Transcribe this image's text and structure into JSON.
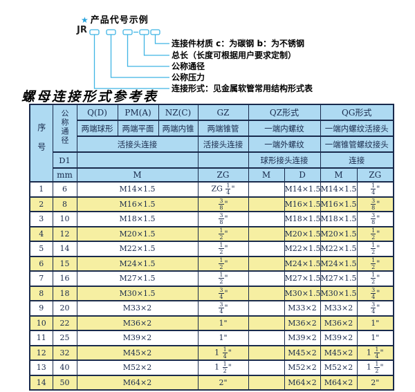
{
  "colors": {
    "accent_cyan": "#3eb4e4",
    "header_blue": "#aedaf2",
    "row_yellow": "#f6efa2",
    "border_navy": "#18294b"
  },
  "diagram": {
    "star_icon": "★",
    "heading": "产品代号示例",
    "prefix": "JR",
    "labels": [
      "连接件材质  c：为碳钢  b：为不锈钢",
      "总长（长度可根据用户要求定制）",
      "公称通径",
      "公称压力",
      "连接形式：见金属软管常用结构形式表"
    ]
  },
  "table": {
    "title": "螺母连接形式参考表",
    "header": {
      "seq": "序号",
      "dn": "公称通径",
      "d1": "D1",
      "mm": "mm",
      "q": "Q(D)",
      "pm": "PM(A)",
      "nz": "NZ(C)",
      "gz": "GZ",
      "qz": "QZ形式",
      "qg": "QG形式",
      "q_desc": "两端球形",
      "pm_desc": "两端平面",
      "nz_desc": "两端内锥",
      "gz_desc": "两端锥管",
      "qz_desc1": "一端内螺纹",
      "qg_desc1": "一端内螺纹活接头",
      "union_conn": "活接头连接",
      "gz_conn": "活接头连接",
      "qz_desc2": "一端外螺纹",
      "qg_desc2": "一端锥管螺纹接头",
      "qz_conn": "球形接头连接",
      "qg_conn": "连接",
      "m": "M",
      "zg": "ZG",
      "qz_m": "M",
      "qz_d": "D",
      "qg_m": "M",
      "qg_zg": "ZG"
    },
    "rows": [
      {
        "seq": "1",
        "dn": "6",
        "m": "M14×1.5",
        "gz": "ZG 1/4\"",
        "qz_m": "",
        "qz_d": "M14×1.5",
        "qg_m": "M14×1.5",
        "qg_zg": "1/4\""
      },
      {
        "seq": "2",
        "dn": "8",
        "m": "M16×1.5",
        "gz": "3/8\"",
        "qz_m": "",
        "qz_d": "M16×1.5",
        "qg_m": "M16×1.5",
        "qg_zg": "3/8\""
      },
      {
        "seq": "3",
        "dn": "10",
        "m": "M18×1.5",
        "gz": "3/8\"",
        "qz_m": "",
        "qz_d": "M18×1.5",
        "qg_m": "M18×1.5",
        "qg_zg": "3/8\""
      },
      {
        "seq": "4",
        "dn": "12",
        "m": "M20×1.5",
        "gz": "1/2\"",
        "qz_m": "",
        "qz_d": "M20×1.5",
        "qg_m": "M20×1.5",
        "qg_zg": "1/2\""
      },
      {
        "seq": "5",
        "dn": "14",
        "m": "M22×1.5",
        "gz": "1/2\"",
        "qz_m": "",
        "qz_d": "M22×1.5",
        "qg_m": "M22×1.5",
        "qg_zg": "1/2\""
      },
      {
        "seq": "6",
        "dn": "15",
        "m": "M24×1.5",
        "gz": "1/2\"",
        "qz_m": "",
        "qz_d": "M24×1.5",
        "qg_m": "M24×1.5",
        "qg_zg": "1/2\""
      },
      {
        "seq": "7",
        "dn": "16",
        "m": "M27×1.5",
        "gz": "1/2\"",
        "qz_m": "",
        "qz_d": "M27×1.5",
        "qg_m": "M27×1.5",
        "qg_zg": "1/2\""
      },
      {
        "seq": "8",
        "dn": "18",
        "m": "M30×1.5",
        "gz": "3/4\"",
        "qz_m": "",
        "qz_d": "M30×1.5",
        "qg_m": "M30×1.5",
        "qg_zg": "3/4\""
      },
      {
        "seq": "9",
        "dn": "20",
        "m": "M33×2",
        "gz": "3/4\"",
        "qz_m": "",
        "qz_d": "M33×2",
        "qg_m": "M33×2",
        "qg_zg": "3/4\""
      },
      {
        "seq": "10",
        "dn": "22",
        "m": "M36×2",
        "gz": "1\"",
        "qz_m": "",
        "qz_d": "M36×2",
        "qg_m": "M36×2",
        "qg_zg": "1\""
      },
      {
        "seq": "11",
        "dn": "25",
        "m": "M39×2",
        "gz": "1\"",
        "qz_m": "",
        "qz_d": "M39×2",
        "qg_m": "M39×2",
        "qg_zg": "1\""
      },
      {
        "seq": "12",
        "dn": "32",
        "m": "M45×2",
        "gz": "1 1/4\"",
        "qz_m": "",
        "qz_d": "M45×2",
        "qg_m": "M45×2",
        "qg_zg": "1 1/4\""
      },
      {
        "seq": "13",
        "dn": "40",
        "m": "M52×2",
        "gz": "1 1/2\"",
        "qz_m": "",
        "qz_d": "M52×2",
        "qg_m": "M52×2",
        "qg_zg": "1 1/2\""
      },
      {
        "seq": "14",
        "dn": "50",
        "m": "M64×2",
        "gz": "2\"",
        "qz_m": "",
        "qz_d": "M64×2",
        "qg_m": "M64×2",
        "qg_zg": "2\""
      }
    ]
  }
}
